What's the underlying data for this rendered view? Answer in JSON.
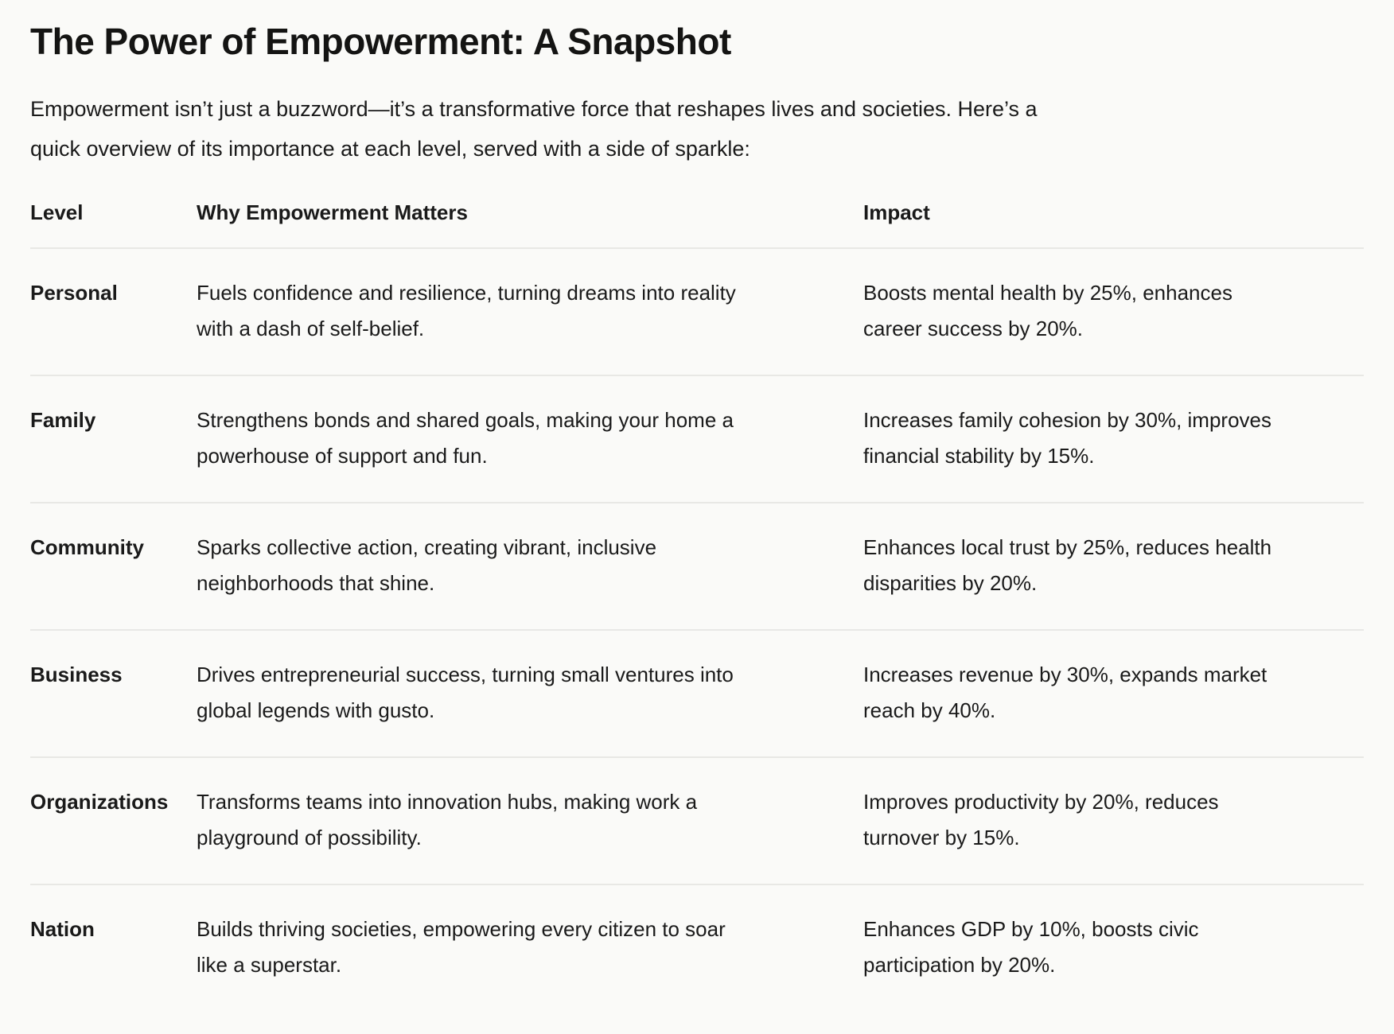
{
  "page": {
    "title": "The Power of Empowerment: A Snapshot",
    "intro": "Empowerment isn’t just a buzzword—it’s a transformative force that reshapes lives and societies. Here’s a\nquick overview of its importance at each level, served with a side of sparkle:"
  },
  "table": {
    "columns": [
      "Level",
      "Why Empowerment Matters",
      "Impact"
    ],
    "rows": [
      {
        "level": "Personal",
        "why": "Fuels confidence and resilience, turning dreams into reality\nwith a dash of self-belief.",
        "impact": "Boosts mental health by 25%, enhances\ncareer success by 20%."
      },
      {
        "level": "Family",
        "why": "Strengthens bonds and shared goals, making your home a\npowerhouse of support and fun.",
        "impact": "Increases family cohesion by 30%, improves\nfinancial stability by 15%."
      },
      {
        "level": "Community",
        "why": "Sparks collective action, creating vibrant, inclusive\nneighborhoods that shine.",
        "impact": "Enhances local trust by 25%, reduces health\ndisparities by 20%."
      },
      {
        "level": "Business",
        "why": "Drives entrepreneurial success, turning small ventures into\nglobal legends with gusto.",
        "impact": "Increases revenue by 30%, expands market\nreach by 40%."
      },
      {
        "level": "Organizations",
        "why": "Transforms teams into innovation hubs, making work a\nplayground of possibility.",
        "impact": "Improves productivity by 20%, reduces\nturnover by 15%."
      },
      {
        "level": "Nation",
        "why": "Builds thriving societies, empowering every citizen to soar\nlike a superstar.",
        "impact": "Enhances GDP by 10%, boosts civic\nparticipation by 20%."
      }
    ]
  },
  "colors": {
    "background": "#fafaf8",
    "text": "#1a1a1a",
    "divider": "#e8e8e5"
  }
}
